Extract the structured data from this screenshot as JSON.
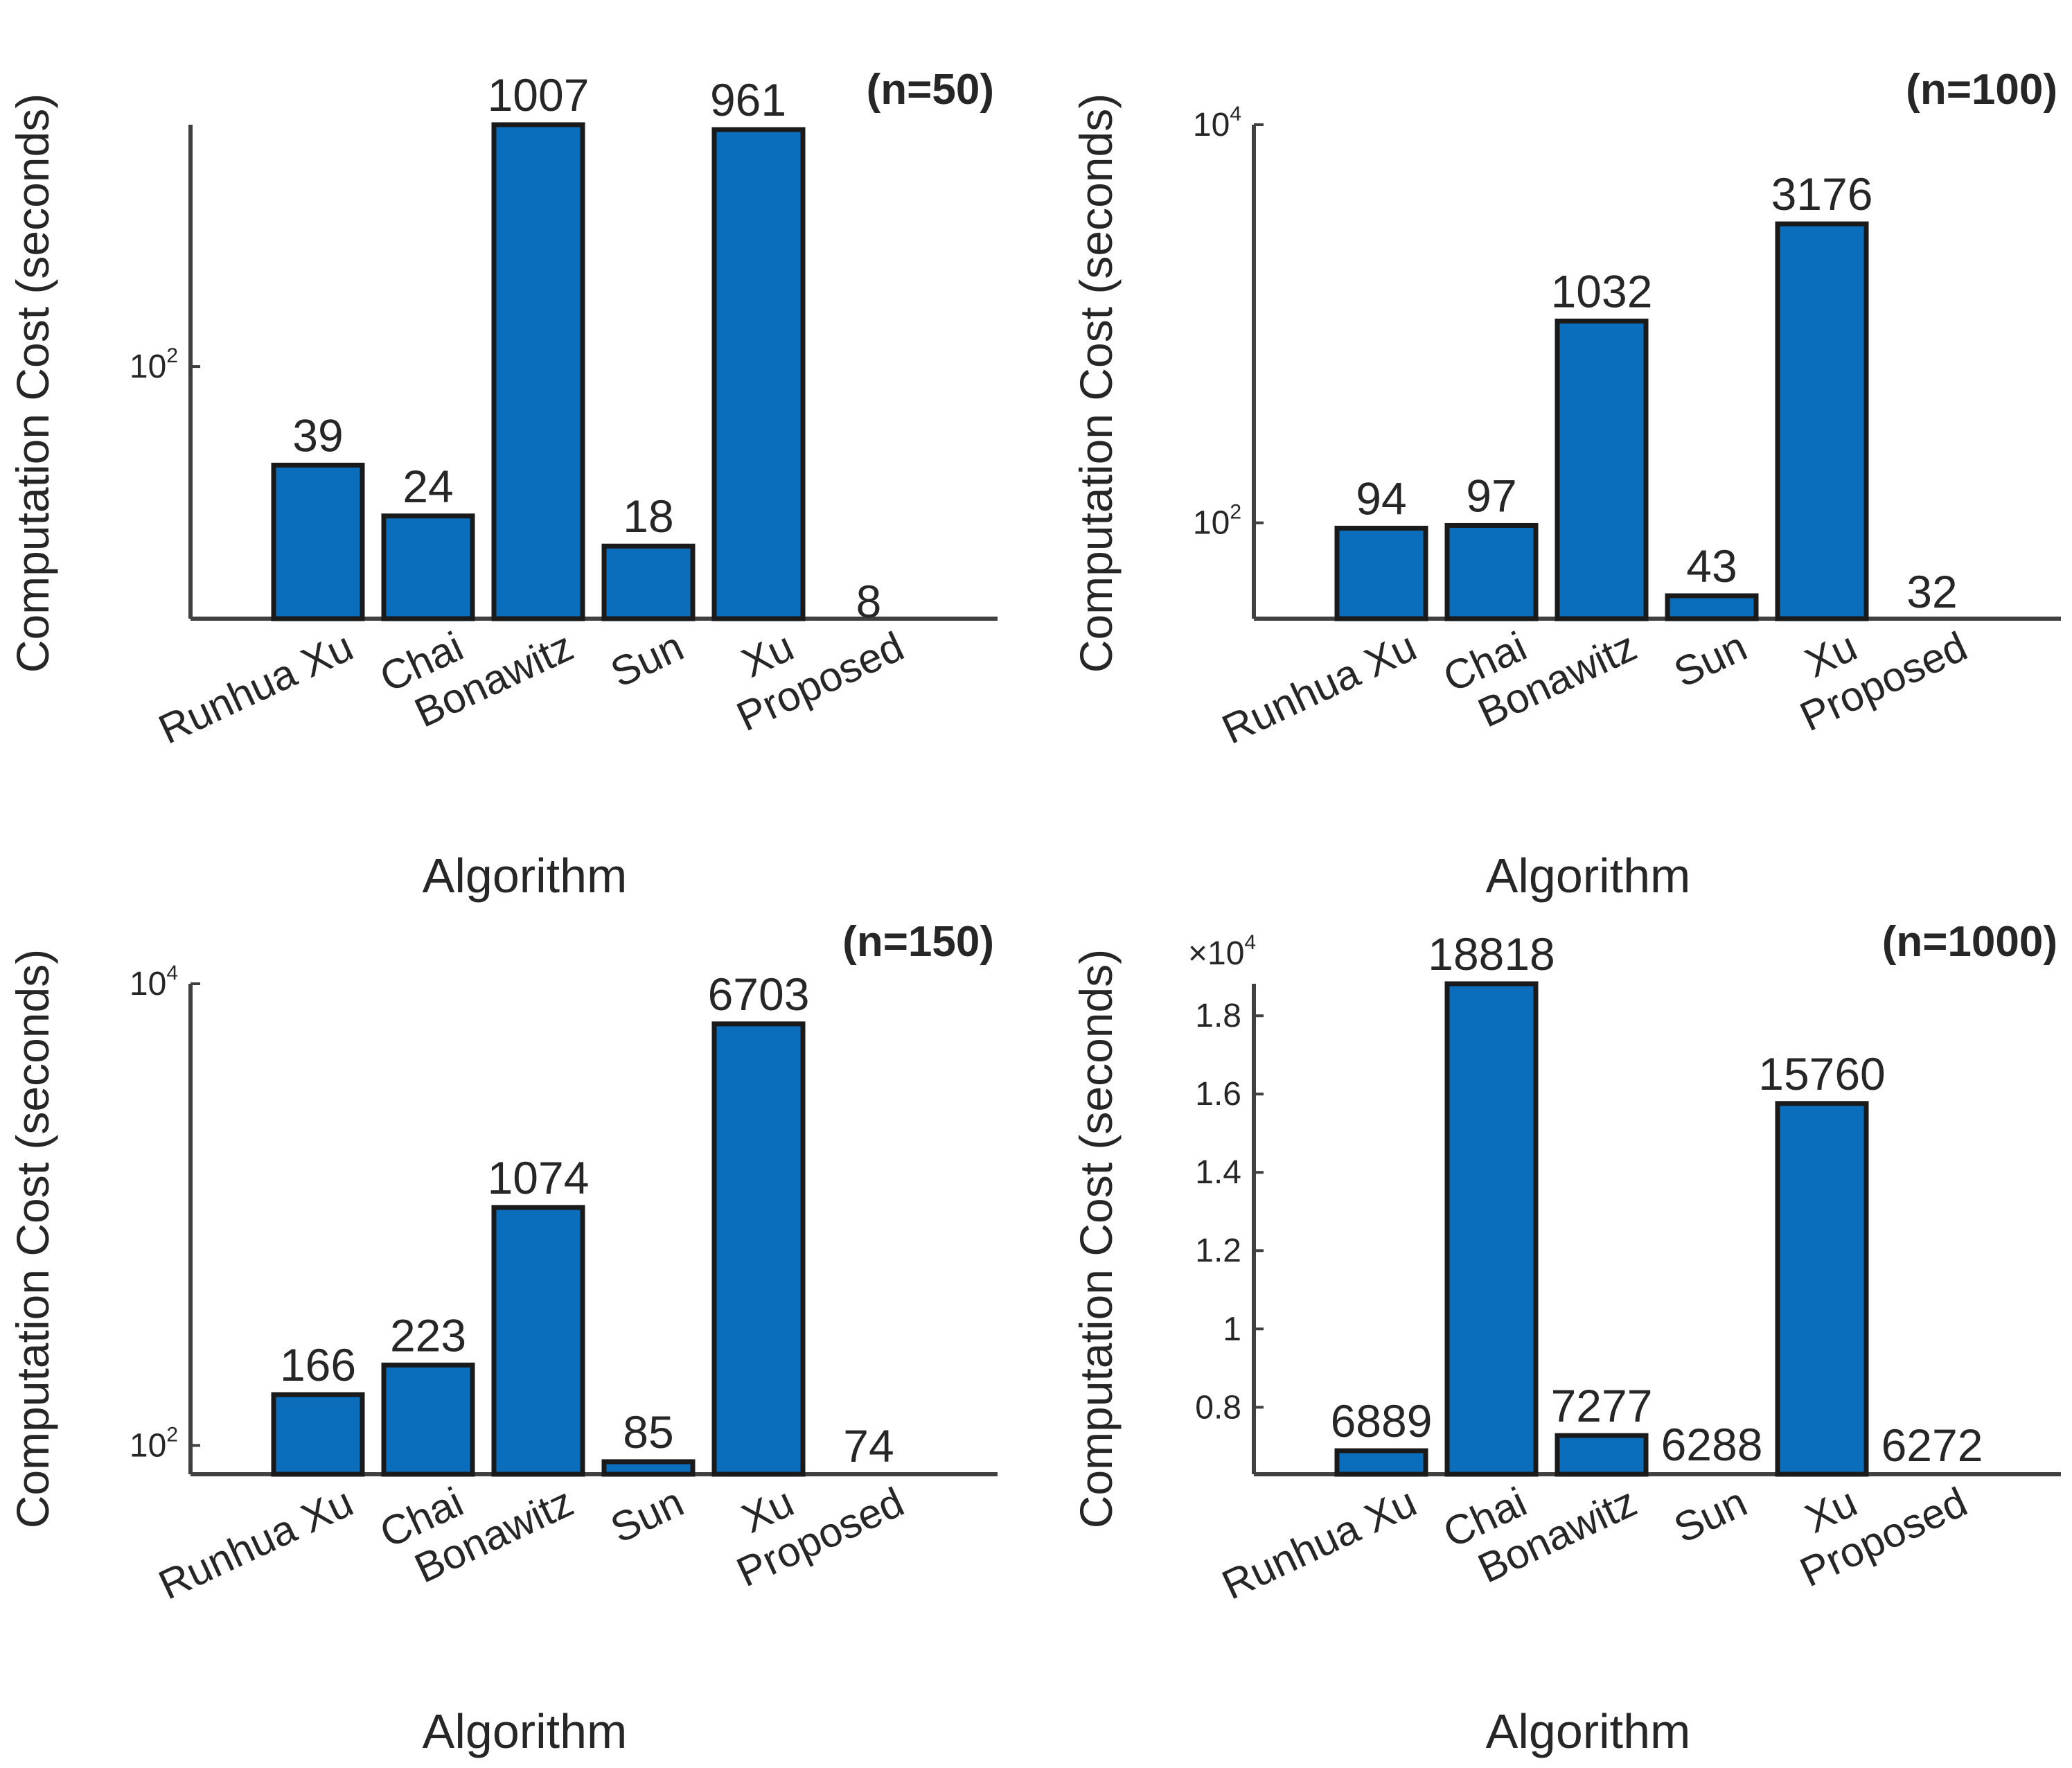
{
  "colors": {
    "bar": "#0a6ebd",
    "axis": "#404040",
    "text": "#262626"
  },
  "chart_data": [
    {
      "type": "bar",
      "scale": "log",
      "annotation": "(n=50)",
      "categories": [
        "Runhua Xu",
        "Chai",
        "Bonawitz",
        "Sun",
        "Xu",
        "Proposed"
      ],
      "values": [
        39,
        24,
        1007,
        18,
        961,
        8
      ],
      "value_labels": [
        "39",
        "24",
        "1007",
        "18",
        "961",
        "8"
      ],
      "xlabel": "Algorithm",
      "ylabel": "Computation Cost (seconds)",
      "ylim": [
        9,
        1007
      ],
      "yticks": [
        {
          "value": 100,
          "base": "10",
          "exp": "2"
        }
      ]
    },
    {
      "type": "bar",
      "scale": "log",
      "annotation": "(n=100)",
      "categories": [
        "Runhua Xu",
        "Chai",
        "Bonawitz",
        "Sun",
        "Xu",
        "Proposed"
      ],
      "values": [
        94,
        97,
        1032,
        43,
        3176,
        32
      ],
      "value_labels": [
        "94",
        "97",
        "1032",
        "43",
        "3176",
        "32"
      ],
      "xlabel": "Algorithm",
      "ylabel": "Computation Cost (seconds)",
      "ylim": [
        33,
        10000
      ],
      "yticks": [
        {
          "value": 100,
          "base": "10",
          "exp": "2"
        },
        {
          "value": 10000,
          "base": "10",
          "exp": "4"
        }
      ]
    },
    {
      "type": "bar",
      "scale": "log",
      "annotation": "(n=150)",
      "categories": [
        "Runhua Xu",
        "Chai",
        "Bonawitz",
        "Sun",
        "Xu",
        "Proposed"
      ],
      "values": [
        166,
        223,
        1074,
        85,
        6703,
        74
      ],
      "value_labels": [
        "166",
        "223",
        "1074",
        "85",
        "6703",
        "74"
      ],
      "xlabel": "Algorithm",
      "ylabel": "Computation Cost (seconds)",
      "ylim": [
        75,
        10000
      ],
      "yticks": [
        {
          "value": 100,
          "base": "10",
          "exp": "2"
        },
        {
          "value": 10000,
          "base": "10",
          "exp": "4"
        }
      ]
    },
    {
      "type": "bar",
      "scale": "linear",
      "annotation": "(n=1000)",
      "multiplier": "×10",
      "multiplier_exp": "4",
      "categories": [
        "Runhua Xu",
        "Chai",
        "Bonawitz",
        "Sun",
        "Xu",
        "Proposed"
      ],
      "values": [
        6889,
        18818,
        7277,
        6288,
        15760,
        6272
      ],
      "value_labels": [
        "6889",
        "18818",
        "7277",
        "6288",
        "15760",
        "6272"
      ],
      "xlabel": "Algorithm",
      "ylabel": "Computation Cost (seconds)",
      "ylim": [
        6288,
        18818
      ],
      "yticks": [
        {
          "value": 8000,
          "label": "0.8"
        },
        {
          "value": 10000,
          "label": "1"
        },
        {
          "value": 12000,
          "label": "1.2"
        },
        {
          "value": 14000,
          "label": "1.4"
        },
        {
          "value": 16000,
          "label": "1.6"
        },
        {
          "value": 18000,
          "label": "1.8"
        }
      ]
    }
  ]
}
